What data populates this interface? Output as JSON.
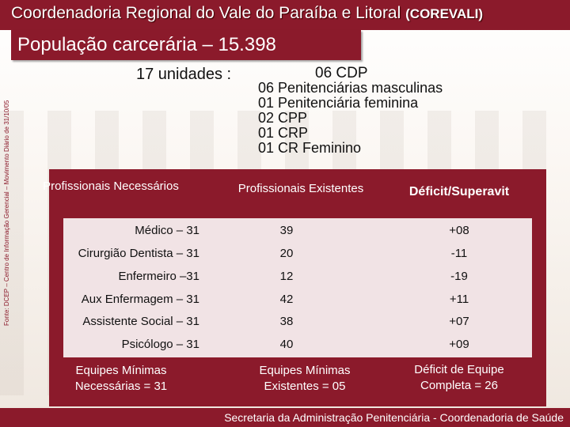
{
  "header": {
    "title_main": "Coordenadoria Regional do Vale do Paraíba e Litoral",
    "title_abbr": "(COREVALI)"
  },
  "subtitle": "População carcerária – 15.398",
  "side_source": "Fonte: DCEP – Centro de Informação Gerencial – Movimento Diário de 31/10/05",
  "units": {
    "label": "17 unidades :",
    "items": [
      "06 CDP",
      "06 Penitenciárias masculinas",
      "01 Penitenciária feminina",
      "02 CPP",
      "01 CRP",
      "01 CR Feminino"
    ]
  },
  "table": {
    "headers": {
      "required": "Profissionais Necessários",
      "existing": "Profissionais Existentes",
      "deficit": "Déficit/Superavit"
    },
    "rows": [
      {
        "role": "Médico – 31",
        "existing": "39",
        "deficit": "+08"
      },
      {
        "role": "Cirurgião Dentista – 31",
        "existing": "20",
        "deficit": "-11"
      },
      {
        "role": "Enfermeiro –31",
        "existing": "12",
        "deficit": "-19"
      },
      {
        "role": "Aux Enfermagem – 31",
        "existing": "42",
        "deficit": "+11"
      },
      {
        "role": "Assistente Social – 31",
        "existing": "38",
        "deficit": "+07"
      },
      {
        "role": "Psicólogo – 31",
        "existing": "40",
        "deficit": "+09"
      }
    ],
    "footer": {
      "required": "Equipes Mínimas Necessárias = 31",
      "existing": "Equipes Mínimas Existentes = 05",
      "deficit": "Déficit de Equipe Completa = 26"
    }
  },
  "footer_text": "Secretaria da Administração Penitenciária - Coordenadoria de Saúde",
  "colors": {
    "brand": "#8b1a2b"
  }
}
